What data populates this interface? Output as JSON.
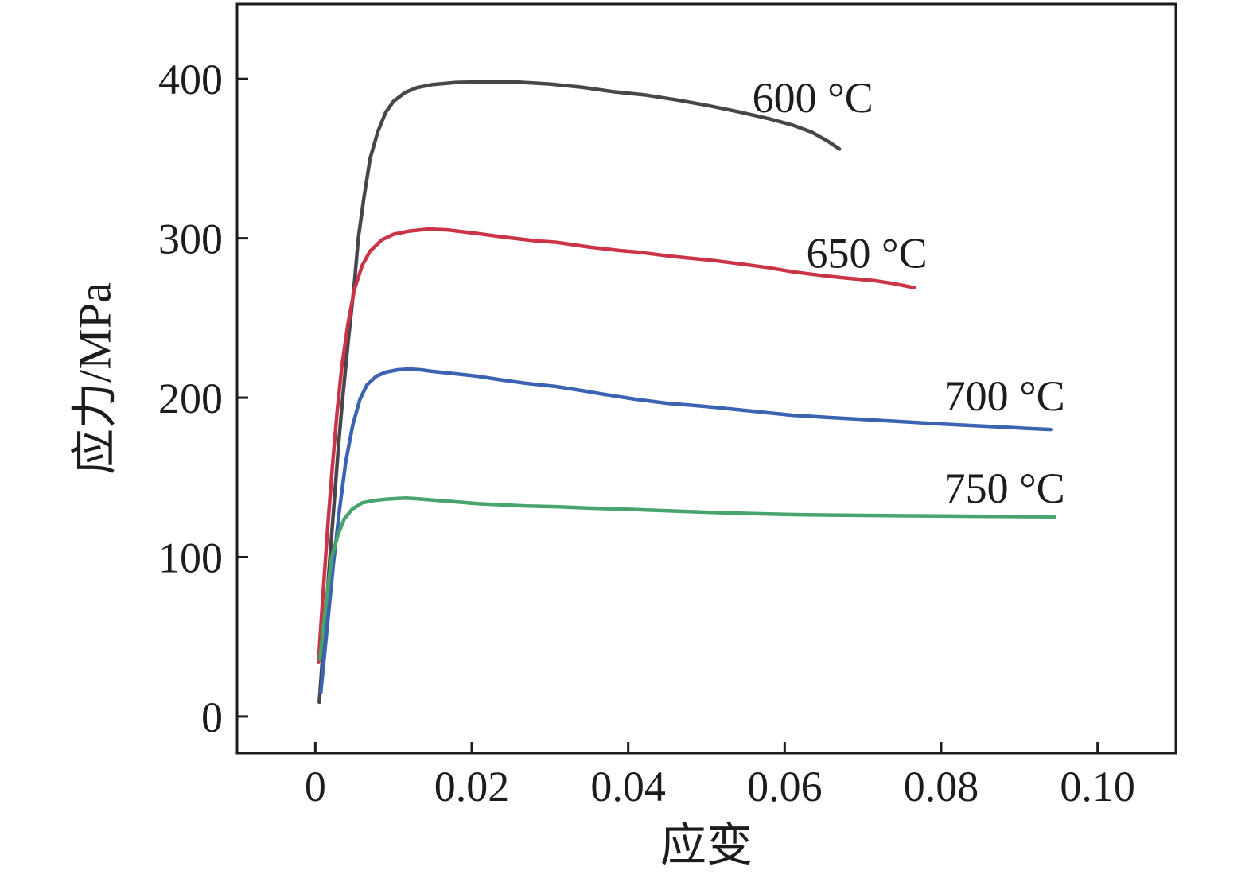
{
  "figure": {
    "background": "#ffffff",
    "axis_color": "#1c1c1c",
    "text_color": "#1c1c1c"
  },
  "chart_data": {
    "type": "line",
    "title": "",
    "xlabel": "应变",
    "ylabel": "应力/MPa",
    "xlim": [
      -0.01,
      0.11
    ],
    "ylim": [
      -23,
      447
    ],
    "grid": false,
    "legend_position": "inline-annotations",
    "x_ticks": [
      {
        "value": 0,
        "label": "0"
      },
      {
        "value": 0.02,
        "label": "0.02"
      },
      {
        "value": 0.04,
        "label": "0.04"
      },
      {
        "value": 0.06,
        "label": "0.06"
      },
      {
        "value": 0.08,
        "label": "0.08"
      },
      {
        "value": 0.1,
        "label": "0.10"
      }
    ],
    "y_ticks": [
      {
        "value": 0,
        "label": "0"
      },
      {
        "value": 100,
        "label": "100"
      },
      {
        "value": 200,
        "label": "200"
      },
      {
        "value": 300,
        "label": "300"
      },
      {
        "value": 400,
        "label": "400"
      }
    ],
    "series": [
      {
        "name": "600 °C",
        "color": "#46464c",
        "annotation": {
          "x": 0.0636,
          "y": 388.5
        },
        "points": [
          [
            0.0005,
            9
          ],
          [
            0.001,
            42
          ],
          [
            0.0015,
            75
          ],
          [
            0.002,
            108
          ],
          [
            0.0025,
            140
          ],
          [
            0.003,
            172
          ],
          [
            0.0035,
            200
          ],
          [
            0.0042,
            235
          ],
          [
            0.005,
            272
          ],
          [
            0.0055,
            300
          ],
          [
            0.0062,
            325
          ],
          [
            0.007,
            350
          ],
          [
            0.008,
            367
          ],
          [
            0.009,
            379
          ],
          [
            0.01,
            386
          ],
          [
            0.0115,
            391.5
          ],
          [
            0.013,
            394.5
          ],
          [
            0.015,
            396.5
          ],
          [
            0.018,
            397.8
          ],
          [
            0.022,
            398.2
          ],
          [
            0.026,
            398
          ],
          [
            0.03,
            396.8
          ],
          [
            0.034,
            394.8
          ],
          [
            0.038,
            392
          ],
          [
            0.042,
            390
          ],
          [
            0.046,
            387
          ],
          [
            0.05,
            383.5
          ],
          [
            0.054,
            379.5
          ],
          [
            0.058,
            375
          ],
          [
            0.061,
            371
          ],
          [
            0.0635,
            366.5
          ],
          [
            0.0655,
            361
          ],
          [
            0.067,
            356
          ]
        ]
      },
      {
        "name": "650 °C",
        "color": "#cb3447",
        "annotation": {
          "x": 0.0705,
          "y": 291
        },
        "points": [
          [
            0.0004,
            34
          ],
          [
            0.001,
            78
          ],
          [
            0.0016,
            120
          ],
          [
            0.0022,
            158
          ],
          [
            0.0028,
            192
          ],
          [
            0.0034,
            220
          ],
          [
            0.0042,
            247
          ],
          [
            0.005,
            268
          ],
          [
            0.006,
            283
          ],
          [
            0.007,
            292
          ],
          [
            0.0085,
            299
          ],
          [
            0.01,
            302.5
          ],
          [
            0.012,
            304.5
          ],
          [
            0.0145,
            305.8
          ],
          [
            0.017,
            305.2
          ],
          [
            0.019,
            304
          ],
          [
            0.0207,
            303
          ],
          [
            0.024,
            300.8
          ],
          [
            0.028,
            298.5
          ],
          [
            0.0308,
            297.5
          ],
          [
            0.035,
            294.5
          ],
          [
            0.039,
            292.3
          ],
          [
            0.041,
            291.5
          ],
          [
            0.045,
            289
          ],
          [
            0.048,
            287.5
          ],
          [
            0.051,
            286
          ],
          [
            0.055,
            283.5
          ],
          [
            0.058,
            281.5
          ],
          [
            0.061,
            279
          ],
          [
            0.065,
            276.5
          ],
          [
            0.068,
            275
          ],
          [
            0.0714,
            273.5
          ],
          [
            0.074,
            271.5
          ],
          [
            0.0766,
            269
          ]
        ]
      },
      {
        "name": "700 °C",
        "color": "#3b63b2",
        "annotation": {
          "x": 0.0881,
          "y": 201.5
        },
        "points": [
          [
            0.0007,
            15
          ],
          [
            0.0015,
            55
          ],
          [
            0.0023,
            95
          ],
          [
            0.0031,
            130
          ],
          [
            0.0039,
            160
          ],
          [
            0.0048,
            183
          ],
          [
            0.0057,
            199
          ],
          [
            0.0066,
            208
          ],
          [
            0.0078,
            213.5
          ],
          [
            0.009,
            216
          ],
          [
            0.0105,
            217.5
          ],
          [
            0.012,
            218
          ],
          [
            0.0135,
            217.5
          ],
          [
            0.015,
            216.5
          ],
          [
            0.017,
            215.5
          ],
          [
            0.0207,
            213.5
          ],
          [
            0.024,
            211
          ],
          [
            0.027,
            209
          ],
          [
            0.0308,
            207
          ],
          [
            0.034,
            204.5
          ],
          [
            0.037,
            202
          ],
          [
            0.041,
            199
          ],
          [
            0.045,
            196.5
          ],
          [
            0.048,
            195.3
          ],
          [
            0.051,
            194
          ],
          [
            0.056,
            191.5
          ],
          [
            0.061,
            189
          ],
          [
            0.066,
            187.5
          ],
          [
            0.0714,
            186
          ],
          [
            0.076,
            184.7
          ],
          [
            0.08,
            183.5
          ],
          [
            0.084,
            182.5
          ],
          [
            0.088,
            181.5
          ],
          [
            0.091,
            180.7
          ],
          [
            0.094,
            180
          ]
        ]
      },
      {
        "name": "750 °C",
        "color": "#48a36c",
        "annotation": {
          "x": 0.0881,
          "y": 143.5
        },
        "points": [
          [
            0.0006,
            36
          ],
          [
            0.0013,
            68
          ],
          [
            0.0021,
            100
          ],
          [
            0.0029,
            114
          ],
          [
            0.0037,
            124
          ],
          [
            0.0047,
            130
          ],
          [
            0.006,
            134
          ],
          [
            0.0075,
            135.5
          ],
          [
            0.009,
            136.3
          ],
          [
            0.0105,
            136.8
          ],
          [
            0.0116,
            137
          ],
          [
            0.013,
            136.6
          ],
          [
            0.015,
            135.8
          ],
          [
            0.017,
            135
          ],
          [
            0.0207,
            133.5
          ],
          [
            0.024,
            132.7
          ],
          [
            0.027,
            132
          ],
          [
            0.0308,
            131.6
          ],
          [
            0.035,
            130.7
          ],
          [
            0.041,
            129.8
          ],
          [
            0.046,
            128.9
          ],
          [
            0.051,
            128
          ],
          [
            0.056,
            127.3
          ],
          [
            0.0612,
            126.7
          ],
          [
            0.066,
            126.4
          ],
          [
            0.0744,
            126
          ],
          [
            0.08,
            125.8
          ],
          [
            0.086,
            125.6
          ],
          [
            0.0945,
            125.3
          ]
        ]
      }
    ]
  }
}
